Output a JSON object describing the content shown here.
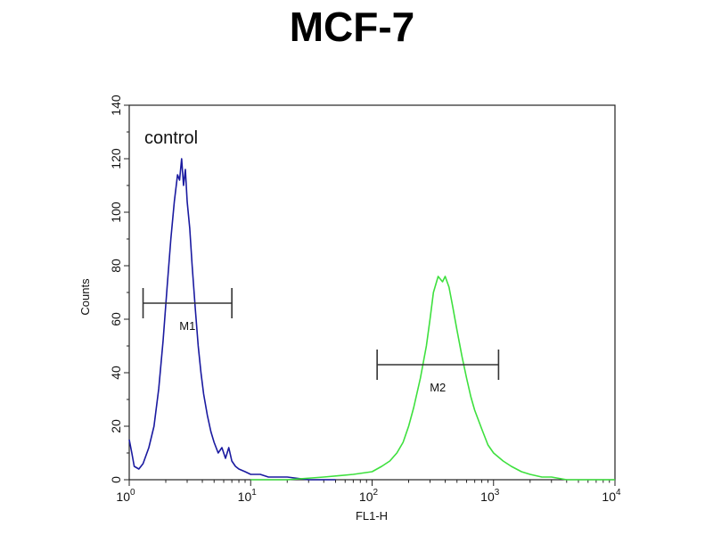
{
  "chart_data": {
    "type": "line",
    "title": "MCF-7",
    "xlabel": "FL1-H",
    "ylabel": "Counts",
    "xscale": "log",
    "xlim": [
      1,
      10000
    ],
    "ylim": [
      0,
      140
    ],
    "yticks": [
      0,
      20,
      40,
      60,
      80,
      100,
      120,
      140
    ],
    "xticks": [
      {
        "value": 1,
        "base": "10",
        "exp": "0"
      },
      {
        "value": 10,
        "base": "10",
        "exp": "1"
      },
      {
        "value": 100,
        "base": "10",
        "exp": "2"
      },
      {
        "value": 1000,
        "base": "10",
        "exp": "3"
      },
      {
        "value": 10000,
        "base": "10",
        "exp": "4"
      }
    ],
    "grid": false,
    "annotation": "control",
    "series": [
      {
        "color": "#1a1aa0",
        "x": [
          1.0,
          1.05,
          1.1,
          1.2,
          1.3,
          1.45,
          1.6,
          1.75,
          1.9,
          2.05,
          2.2,
          2.35,
          2.5,
          2.6,
          2.7,
          2.8,
          2.9,
          3.0,
          3.15,
          3.3,
          3.5,
          3.7,
          3.9,
          4.1,
          4.4,
          4.7,
          5.0,
          5.4,
          5.8,
          6.2,
          6.6,
          7.0,
          7.5,
          8.0,
          9.0,
          10.0,
          12.0,
          14.0,
          17.0,
          20.0,
          30.0,
          50.0
        ],
        "y": [
          15,
          10,
          5,
          4,
          6,
          12,
          20,
          34,
          52,
          72,
          90,
          104,
          114,
          112,
          120,
          110,
          116,
          104,
          94,
          80,
          64,
          50,
          40,
          32,
          24,
          18,
          14,
          10,
          12,
          8,
          12,
          7,
          5,
          4,
          3,
          2,
          2,
          1,
          1,
          1,
          0,
          0
        ]
      },
      {
        "color": "#3ee03e",
        "x": [
          10.0,
          20.0,
          40.0,
          70.0,
          100.0,
          120.0,
          140.0,
          160.0,
          180.0,
          200.0,
          220.0,
          250.0,
          280.0,
          300.0,
          320.0,
          350.0,
          380.0,
          400.0,
          430.0,
          460.0,
          500.0,
          550.0,
          600.0,
          650.0,
          700.0,
          800.0,
          900.0,
          1000.0,
          1200.0,
          1400.0,
          1700.0,
          2000.0,
          2500.0,
          3000.0,
          4000.0,
          6000.0,
          10000.0
        ],
        "y": [
          0,
          0,
          1,
          2,
          3,
          5,
          7,
          10,
          14,
          20,
          27,
          38,
          50,
          60,
          70,
          76,
          74,
          76,
          72,
          65,
          56,
          46,
          38,
          31,
          26,
          19,
          13,
          10,
          7,
          5,
          3,
          2,
          1,
          1,
          0,
          0,
          0
        ]
      }
    ],
    "markers": [
      {
        "label": "M1",
        "x_start": 1.3,
        "x_end": 7.0,
        "y": 66
      },
      {
        "label": "M2",
        "x_start": 110.0,
        "x_end": 1100.0,
        "y": 43
      }
    ]
  }
}
